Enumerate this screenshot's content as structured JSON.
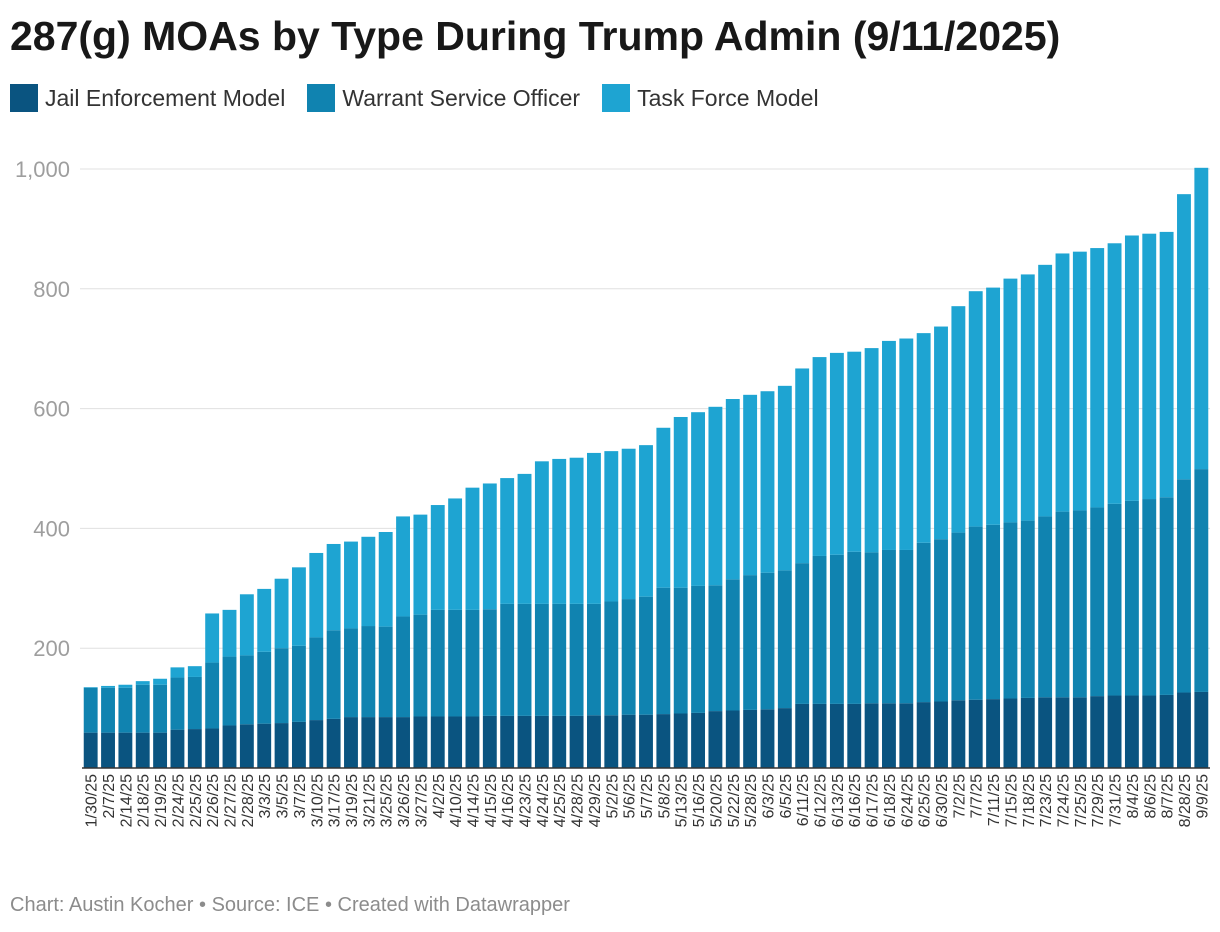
{
  "title": "287(g) MOAs by Type During Trump Admin (9/11/2025)",
  "footer": {
    "author": "Chart: Austin Kocher",
    "source": "Source: ICE",
    "credit": "Created with Datawrapper",
    "separator": "•"
  },
  "colors": {
    "jail": "#0a5480",
    "warrant": "#1083b0",
    "task": "#1ea4d2",
    "grid": "#e0e0e0",
    "axis_text": "#9e9e9e",
    "tick_text": "#333333"
  },
  "chart_data": {
    "type": "bar",
    "stacked": true,
    "title": "287(g) MOAs by Type During Trump Admin (9/11/2025)",
    "xlabel": "",
    "ylabel": "",
    "ylim": [
      0,
      1000
    ],
    "yticks": [
      200,
      400,
      600,
      800,
      1000
    ],
    "ytick_labels": [
      "200",
      "400",
      "600",
      "800",
      "1,000"
    ],
    "grid": true,
    "legend": "top-left",
    "categories": [
      "1/30/25",
      "2/7/25",
      "2/14/25",
      "2/18/25",
      "2/19/25",
      "2/24/25",
      "2/25/25",
      "2/26/25",
      "2/27/25",
      "2/28/25",
      "3/3/25",
      "3/5/25",
      "3/7/25",
      "3/10/25",
      "3/17/25",
      "3/19/25",
      "3/21/25",
      "3/25/25",
      "3/26/25",
      "3/27/25",
      "4/2/25",
      "4/10/25",
      "4/14/25",
      "4/15/25",
      "4/16/25",
      "4/23/25",
      "4/24/25",
      "4/25/25",
      "4/28/25",
      "4/29/25",
      "5/2/25",
      "5/6/25",
      "5/7/25",
      "5/8/25",
      "5/13/25",
      "5/16/25",
      "5/20/25",
      "5/22/25",
      "5/28/25",
      "6/3/25",
      "6/5/25",
      "6/11/25",
      "6/12/25",
      "6/13/25",
      "6/16/25",
      "6/17/25",
      "6/18/25",
      "6/24/25",
      "6/25/25",
      "6/30/25",
      "7/2/25",
      "7/7/25",
      "7/11/25",
      "7/15/25",
      "7/18/25",
      "7/23/25",
      "7/24/25",
      "7/25/25",
      "7/29/25",
      "7/31/25",
      "8/4/25",
      "8/6/25",
      "8/7/25",
      "8/28/25",
      "9/9/25"
    ],
    "series": [
      {
        "name": "Jail Enforcement Model",
        "values": [
          59,
          59,
          59,
          59,
          59,
          64,
          65,
          66,
          71,
          73,
          74,
          75,
          77,
          80,
          82,
          85,
          85,
          85,
          85,
          86,
          86,
          86,
          86,
          87,
          87,
          87,
          87,
          87,
          87,
          88,
          88,
          89,
          89,
          90,
          91,
          92,
          95,
          96,
          97,
          98,
          100,
          107,
          107,
          107,
          107,
          108,
          108,
          108,
          110,
          111,
          113,
          114,
          115,
          116,
          117,
          118,
          118,
          118,
          120,
          121,
          121,
          121,
          122,
          126,
          127
        ]
      },
      {
        "name": "Warrant Service Officer",
        "values": [
          75,
          75,
          75,
          80,
          80,
          87,
          87,
          110,
          115,
          115,
          120,
          125,
          127,
          138,
          148,
          148,
          152,
          151,
          168,
          170,
          178,
          178,
          178,
          178,
          187,
          187,
          187,
          187,
          187,
          186,
          190,
          193,
          197,
          211,
          210,
          212,
          210,
          219,
          225,
          228,
          230,
          235,
          247,
          249,
          254,
          252,
          256,
          256,
          266,
          271,
          280,
          289,
          291,
          294,
          296,
          302,
          310,
          312,
          315,
          320,
          325,
          328,
          330,
          356,
          372
        ]
      },
      {
        "name": "Task Force Model",
        "values": [
          1,
          3,
          5,
          6,
          10,
          17,
          18,
          82,
          78,
          102,
          105,
          116,
          131,
          141,
          144,
          145,
          149,
          158,
          167,
          167,
          175,
          186,
          204,
          210,
          210,
          217,
          238,
          242,
          244,
          252,
          251,
          251,
          253,
          267,
          285,
          290,
          298,
          301,
          301,
          303,
          308,
          325,
          332,
          337,
          334,
          341,
          349,
          353,
          350,
          355,
          378,
          393,
          396,
          407,
          411,
          420,
          431,
          432,
          433,
          435,
          443,
          443,
          443,
          476,
          503
        ]
      }
    ]
  }
}
